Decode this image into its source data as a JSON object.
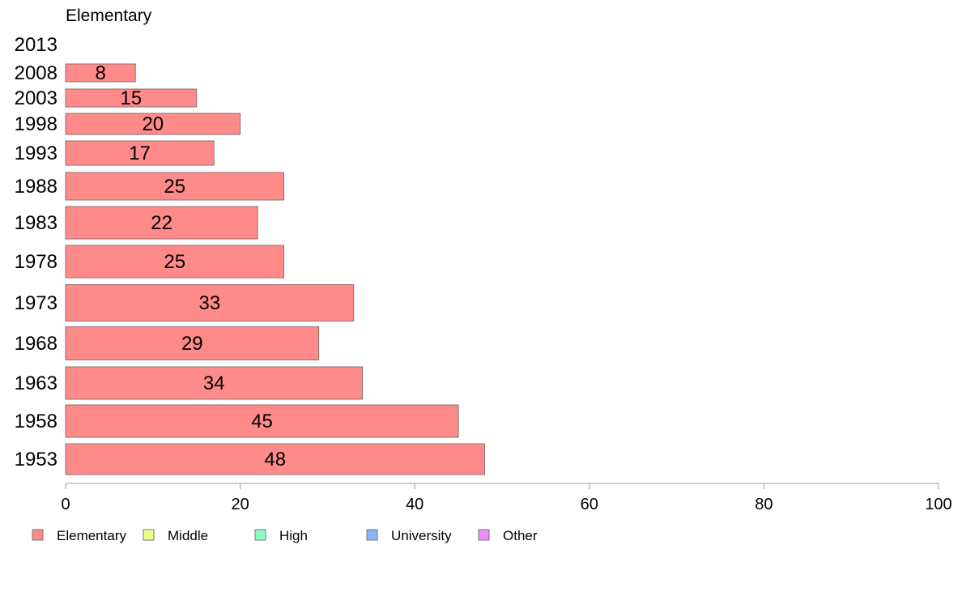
{
  "chart_data": {
    "type": "bar",
    "orientation": "horizontal",
    "title": "Elementary",
    "categories": [
      "1953",
      "1958",
      "1963",
      "1968",
      "1973",
      "1978",
      "1983",
      "1988",
      "1993",
      "1998",
      "2003",
      "2008",
      "2013"
    ],
    "series": [
      {
        "name": "Elementary",
        "color": "#ff8a8a",
        "values": [
          48,
          45,
          34,
          29,
          33,
          25,
          22,
          25,
          17,
          20,
          15,
          8,
          null
        ]
      }
    ],
    "xlim": [
      0,
      100
    ],
    "xticks": [
      0,
      20,
      40,
      60,
      80,
      100
    ],
    "grid": false,
    "legend_position": "bottom-left",
    "legend": [
      {
        "label": "Elementary",
        "color": "#ff8a8a"
      },
      {
        "label": "Middle",
        "color": "#eeff8a"
      },
      {
        "label": "High",
        "color": "#8affc0"
      },
      {
        "label": "University",
        "color": "#8ab4ff"
      },
      {
        "label": "Other",
        "color": "#f08aff"
      }
    ]
  }
}
